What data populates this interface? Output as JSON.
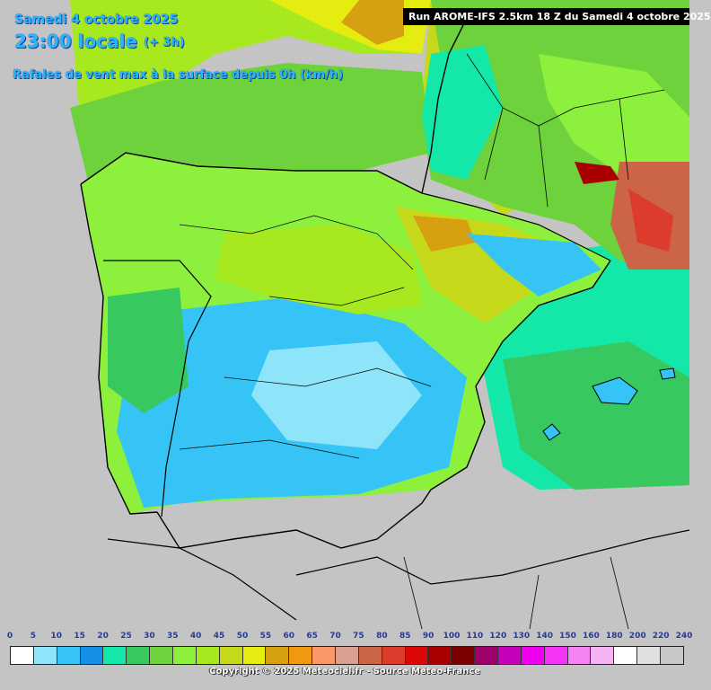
{
  "header": {
    "date": "Samedi 4 octobre 2025",
    "time": "23:00 locale",
    "offset": "(+ 3h)",
    "parameter": "Rafales de vent max à la surface depuis 0h (km/h)"
  },
  "run_info": "Run AROME-IFS 2.5km 18 Z du Samedi 4 octobre 2025",
  "legend": {
    "unit": "km/h",
    "ticks": [
      "0",
      "5",
      "10",
      "15",
      "20",
      "25",
      "30",
      "35",
      "40",
      "45",
      "50",
      "55",
      "60",
      "65",
      "70",
      "75",
      "80",
      "85",
      "90",
      "100",
      "110",
      "120",
      "130",
      "140",
      "150",
      "160",
      "180",
      "200",
      "220",
      "240"
    ],
    "colors": [
      "#ffffff",
      "#8ee4f8",
      "#35c4f5",
      "#1590e6",
      "#14e8a8",
      "#38c860",
      "#6ed23c",
      "#8cf03c",
      "#a8e81e",
      "#c6d81a",
      "#e4ec10",
      "#d6a010",
      "#f09810",
      "#fa9868",
      "#d8a090",
      "#cc6448",
      "#dc3c2c",
      "#dc0808",
      "#a80000",
      "#7c0000",
      "#a0006c",
      "#c400b8",
      "#f000f0",
      "#f434f4",
      "#f484f4",
      "#f4b4f4",
      "#ffffff",
      "#e0e0e0",
      "#c8c8c8"
    ]
  },
  "map": {
    "region": "Péninsule Ibérique",
    "ocean_color": "#c4c4c4",
    "border_color": "#000000"
  },
  "copyright": "Copyright © 2025 Meteociel.fr - Source Meteo-France"
}
